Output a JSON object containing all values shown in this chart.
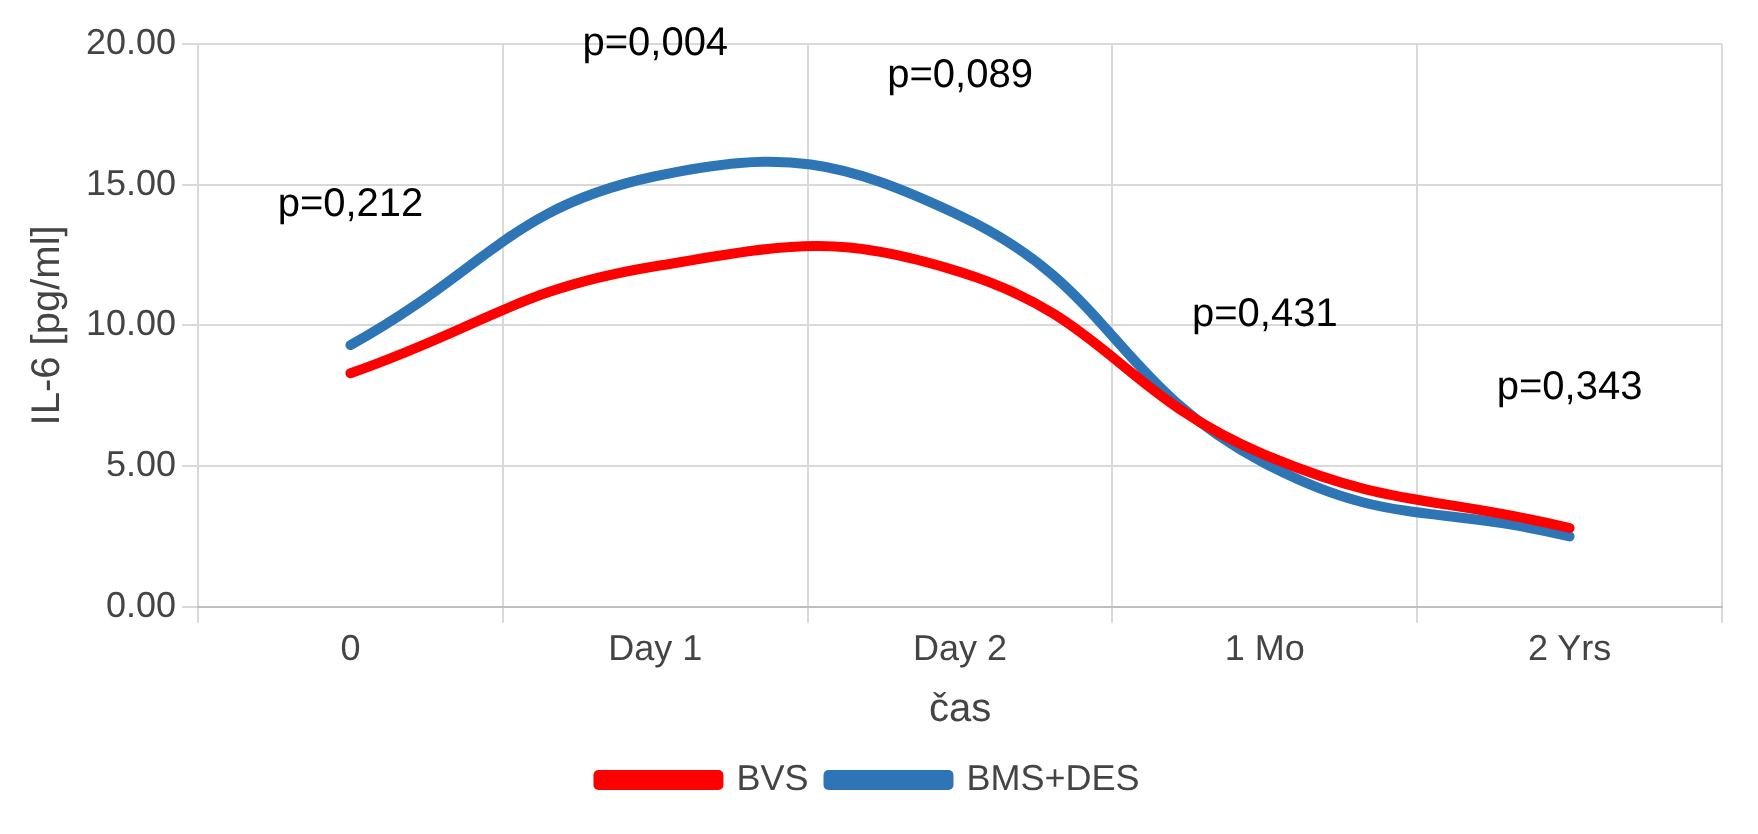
{
  "chart_data": {
    "type": "line",
    "xlabel": "čas",
    "ylabel": "IL-6 [pg/ml]",
    "categories": [
      "0",
      "Day 1",
      "Day 2",
      "1 Mo",
      "2 Yrs"
    ],
    "series": [
      {
        "name": "BVS",
        "color": "#ff0000",
        "values": [
          8.3,
          12.1,
          11.9,
          5.4,
          2.8
        ]
      },
      {
        "name": "BMS+DES",
        "color": "#2e75b6",
        "values": [
          9.3,
          15.3,
          13.9,
          5.1,
          2.5
        ]
      }
    ],
    "ylim": [
      0,
      20
    ],
    "yticks": [
      {
        "value": 0,
        "label": "0.00"
      },
      {
        "value": 5,
        "label": "5.00"
      },
      {
        "value": 10,
        "label": "10.00"
      },
      {
        "value": 15,
        "label": "15.00"
      },
      {
        "value": 20,
        "label": "20.00"
      }
    ],
    "annotations": [
      "p=0,212",
      "p=0,004",
      "p=0,089",
      "p=0,431",
      "p=0,343"
    ],
    "grid": true,
    "legend": "bottom",
    "marker": "none",
    "line_style": "solid"
  }
}
